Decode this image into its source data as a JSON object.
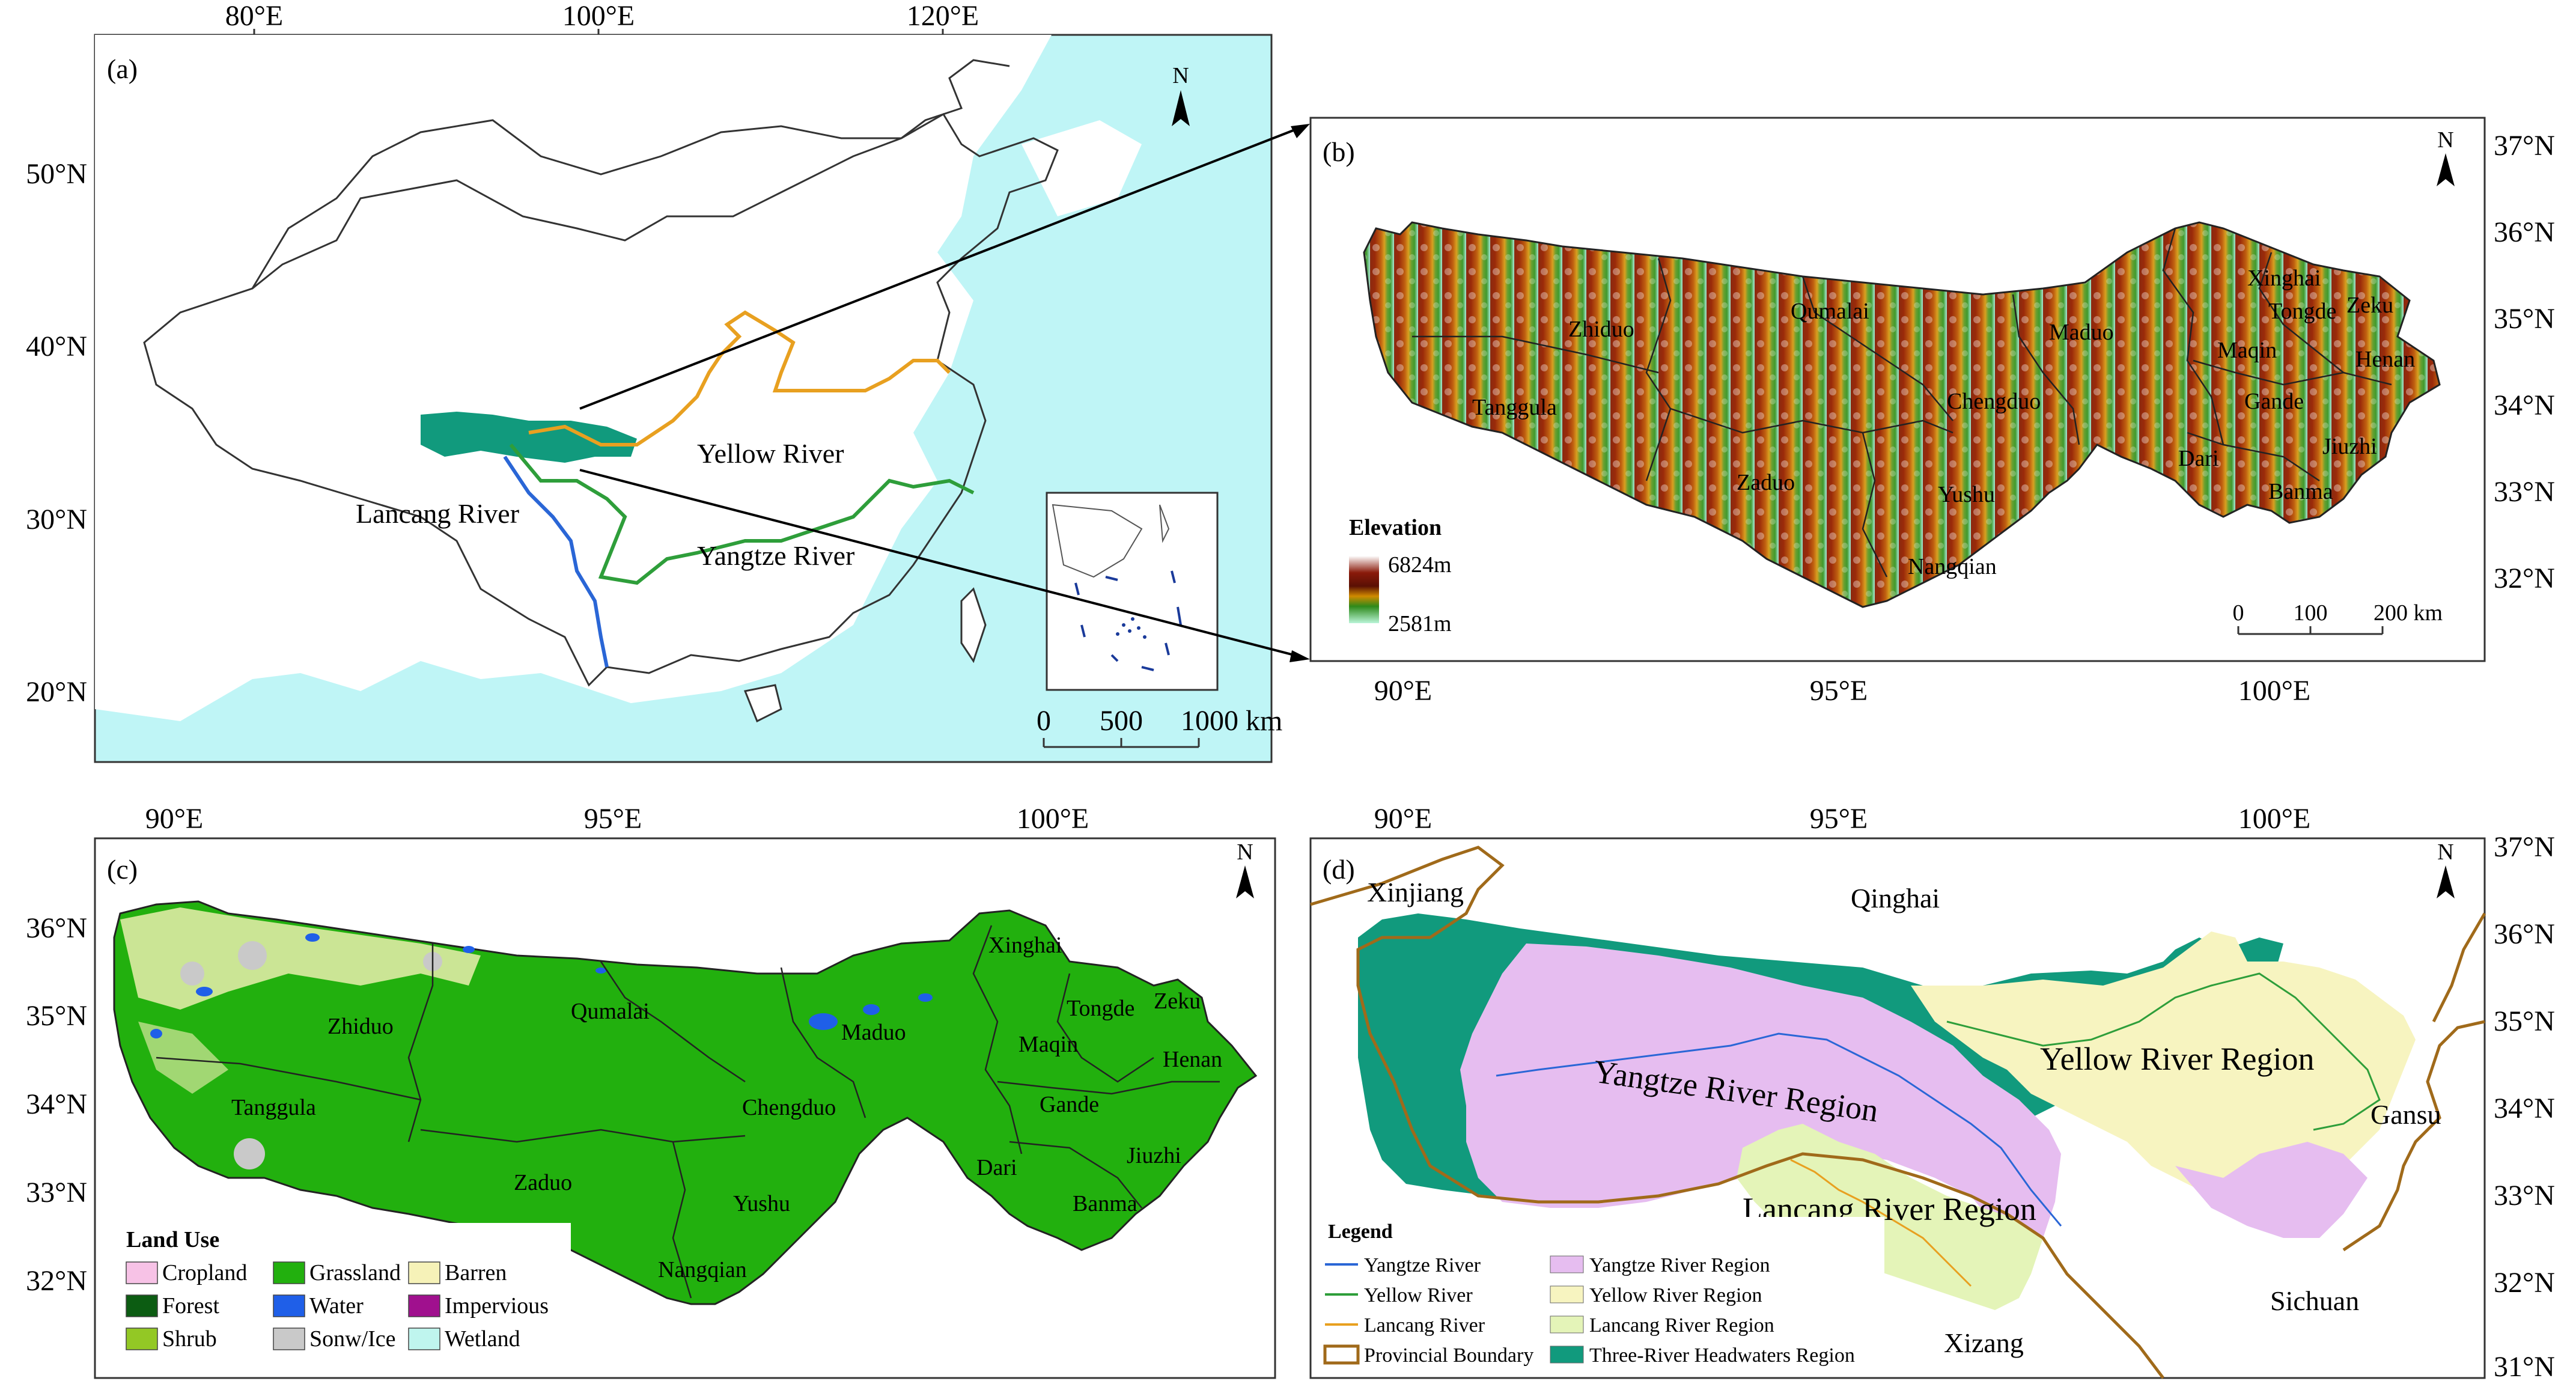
{
  "panel_a": {
    "label": "(a)",
    "top_ticks": [
      "80°E",
      "100°E",
      "120°E"
    ],
    "left_ticks": [
      "50°N",
      "40°N",
      "30°N",
      "20°N"
    ],
    "rivers": {
      "yellow": "Yellow River",
      "lancang": "Lancang River",
      "yangtze": "Yangtze River"
    },
    "scale": [
      "0",
      "500",
      "1000 km"
    ],
    "north": "N",
    "colors": {
      "sea": "#bff5f6",
      "yellow_river": "#e8a020",
      "yangtze": "#2e9e3a",
      "lancang": "#2a66d6",
      "headwaters": "#119a7d"
    }
  },
  "panel_b": {
    "label": "(b)",
    "right_ticks": [
      "37°N",
      "36°N",
      "35°N",
      "34°N",
      "33°N",
      "32°N"
    ],
    "bottom_ticks": [
      "90°E",
      "95°E",
      "100°E"
    ],
    "counties": [
      "Zhiduo",
      "Qumalai",
      "Maduo",
      "Xinghai",
      "Tongde",
      "Zeku",
      "Maqin",
      "Henan",
      "Tanggula",
      "Chengduo",
      "Gande",
      "Jiuzhi",
      "Dari",
      "Zaduo",
      "Yushu",
      "Banma",
      "Nangqian"
    ],
    "legend_title": "Elevation",
    "elev_max": "6824m",
    "elev_min": "2581m",
    "scale": [
      "0",
      "100",
      "200 km"
    ],
    "north": "N"
  },
  "panel_c": {
    "label": "(c)",
    "top_ticks": [
      "90°E",
      "95°E",
      "100°E"
    ],
    "left_ticks": [
      "36°N",
      "35°N",
      "34°N",
      "33°N",
      "32°N"
    ],
    "counties": [
      "Xinghai",
      "Qumalai",
      "Zhiduo",
      "Maduo",
      "Tongde",
      "Zeku",
      "Maqin",
      "Henan",
      "Tanggula",
      "Chengduo",
      "Gande",
      "Zaduo",
      "Dari",
      "Jiuzhi",
      "Yushu",
      "Banma",
      "Nangqian"
    ],
    "legend_title": "Land Use",
    "legend": [
      {
        "label": "Cropland",
        "color": "#f7c2e6"
      },
      {
        "label": "Grassland",
        "color": "#22b00e"
      },
      {
        "label": "Barren",
        "color": "#f6f2b8"
      },
      {
        "label": "Forest",
        "color": "#0c5c12"
      },
      {
        "label": "Water",
        "color": "#1f5fe8"
      },
      {
        "label": "Impervious",
        "color": "#a0108e"
      },
      {
        "label": "Shrub",
        "color": "#93c825"
      },
      {
        "label": "Sonw/Ice",
        "color": "#c9c9c9"
      },
      {
        "label": "Wetland",
        "color": "#bff5ee"
      }
    ],
    "north": "N"
  },
  "panel_d": {
    "label": "(d)",
    "top_ticks": [
      "90°E",
      "95°E",
      "100°E"
    ],
    "right_ticks": [
      "37°N",
      "36°N",
      "35°N",
      "34°N",
      "33°N",
      "32°N",
      "31°N"
    ],
    "provinces": [
      "Xinjiang",
      "Qinghai",
      "Gansu",
      "Sichuan",
      "Xizang"
    ],
    "regions": [
      "Yangtze River Region",
      "Yellow River Region",
      "Lancang River Region"
    ],
    "legend_title": "Legend",
    "legend": [
      {
        "label": "Yangtze River",
        "color": "#2a66d6",
        "kind": "line"
      },
      {
        "label": "Yangtze River Region",
        "color": "#e6bdf0",
        "kind": "fill"
      },
      {
        "label": "Yellow River",
        "color": "#2e9e3a",
        "kind": "line"
      },
      {
        "label": "Yellow River Region",
        "color": "#f7f4c0",
        "kind": "fill"
      },
      {
        "label": "Lancang River",
        "color": "#e8a020",
        "kind": "line"
      },
      {
        "label": "Lancang River Region",
        "color": "#e4f4b8",
        "kind": "fill"
      },
      {
        "label": "Provincial Boundary",
        "color": "#a06a1a",
        "kind": "box"
      },
      {
        "label": "Three-River Headwaters Region",
        "color": "#119a7d",
        "kind": "fill"
      }
    ],
    "north": "N"
  }
}
